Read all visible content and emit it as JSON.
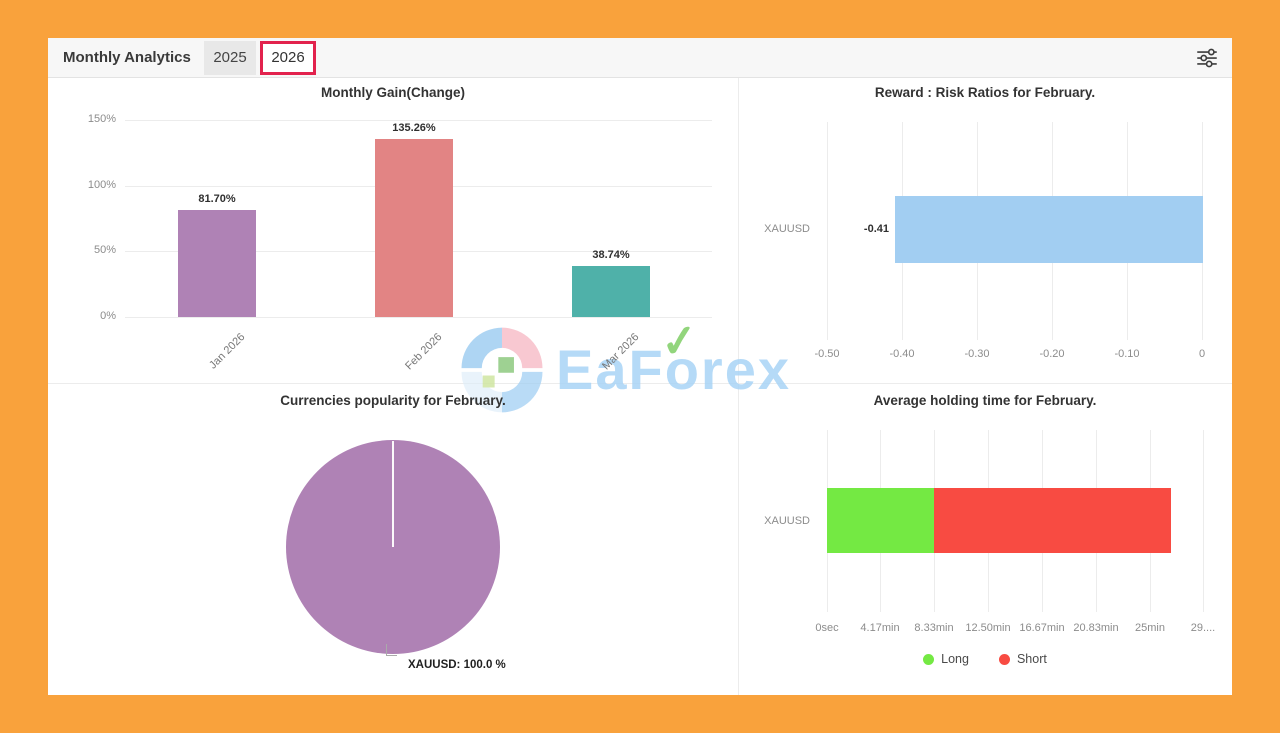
{
  "header": {
    "title": "Monthly Analytics",
    "tabs": [
      {
        "label": "2025",
        "active": false
      },
      {
        "label": "2026",
        "active": true
      }
    ]
  },
  "controls": {
    "filter_icon": "sliders-icon"
  },
  "watermark": {
    "brand": "EaForex",
    "text_pre": "EaF",
    "text_mid": "o",
    "text_post": "rex",
    "check": "✓",
    "text_color": "#A9D4F6",
    "check_color": "#7FCE66"
  },
  "colors": {
    "frame": "#F9A23C",
    "active_tab_border": "#E2224D",
    "grid": "#ECECEC",
    "axis_text": "#8C8C8C",
    "value_text": "#2F2F2F"
  },
  "chart_data": [
    {
      "type": "bar",
      "title": "Monthly Gain(Change)",
      "categories": [
        "Jan 2026",
        "Feb 2026",
        "Mar 2026"
      ],
      "values": [
        81.7,
        135.26,
        38.74
      ],
      "value_labels": [
        "81.70%",
        "135.26%",
        "38.74%"
      ],
      "bar_colors": [
        "#AF82B5",
        "#E28484",
        "#4FB1A9"
      ],
      "y_ticks": [
        "150%",
        "100%",
        "50%",
        "0%"
      ],
      "ylim": [
        0,
        150
      ],
      "grid": true,
      "legend": "none"
    },
    {
      "type": "horizontal-bar",
      "title": "Reward : Risk Ratios for February.",
      "categories": [
        "XAUUSD"
      ],
      "values": [
        -0.41
      ],
      "value_labels": [
        "-0.41"
      ],
      "bar_color": "#A2CEF2",
      "x_ticks": [
        "-0.50",
        "-0.40",
        "-0.30",
        "-0.20",
        "-0.10",
        "0"
      ],
      "xlim": [
        -0.5,
        0
      ],
      "grid": true,
      "legend": "none"
    },
    {
      "type": "pie",
      "title": "Currencies popularity for February.",
      "slices": [
        {
          "label": "XAUUSD",
          "value": 100.0,
          "display": "XAUUSD: 100.0 %",
          "color": "#AF82B5"
        }
      ]
    },
    {
      "type": "horizontal-stacked-bar",
      "title": "Average holding time for February.",
      "categories": [
        "XAUUSD"
      ],
      "series": [
        {
          "name": "Long",
          "minutes": 8.33,
          "color": "#74E943"
        },
        {
          "name": "Short",
          "minutes": 18.4,
          "color": "#F84B42"
        }
      ],
      "x_ticks": [
        "0sec",
        "4.17min",
        "8.33min",
        "12.50min",
        "16.67min",
        "20.83min",
        "25min",
        "29...."
      ],
      "xlim_minutes": [
        0,
        29.17
      ],
      "legend_position": "bottom"
    }
  ]
}
